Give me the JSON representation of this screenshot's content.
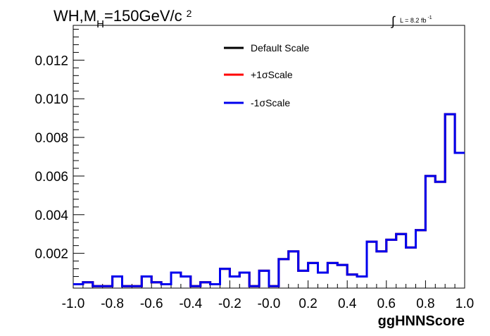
{
  "chart_data": {
    "type": "histogram",
    "title_parts": {
      "main": "WH,M",
      "sub": "H",
      "rest": "=150GeV/c",
      "sup": "2"
    },
    "lumi": {
      "integral": "∫",
      "text": "L = 8.2 fb",
      "sup": "-1"
    },
    "xlabel": "ggHNNScore",
    "ylabel": "",
    "xlim": [
      -1.0,
      1.0
    ],
    "ylim": [
      0.0002,
      0.0138
    ],
    "x_ticks": [
      "-1.0",
      "-0.8",
      "-0.6",
      "-0.4",
      "-0.2",
      "-0.0",
      "0.2",
      "0.4",
      "0.6",
      "0.8",
      "1.0"
    ],
    "y_ticks": [
      "0.002",
      "0.004",
      "0.006",
      "0.008",
      "0.010",
      "0.012"
    ],
    "bin_edges_start": -1.0,
    "bin_width": 0.05,
    "series": [
      {
        "name": "Default Scale",
        "color": "#000000",
        "values": [
          0.0004,
          0.0005,
          0.0003,
          0.0003,
          0.0008,
          0.0003,
          0.0003,
          0.0008,
          0.0005,
          0.0004,
          0.001,
          0.0008,
          0.0003,
          0.0005,
          0.0004,
          0.0012,
          0.0008,
          0.001,
          0.0003,
          0.0011,
          0.0003,
          0.0017,
          0.0021,
          0.0011,
          0.0015,
          0.001,
          0.0015,
          0.0014,
          0.0009,
          0.0008,
          0.0026,
          0.0021,
          0.0027,
          0.003,
          0.0023,
          0.0032,
          0.006,
          0.0057,
          0.0092,
          0.0072
        ]
      },
      {
        "name": "+1σScale",
        "color": "#ff0000",
        "values": [
          0.0004,
          0.0005,
          0.0003,
          0.0003,
          0.0008,
          0.0003,
          0.0003,
          0.0008,
          0.0005,
          0.0004,
          0.001,
          0.0008,
          0.0003,
          0.0005,
          0.0004,
          0.0012,
          0.0008,
          0.001,
          0.0003,
          0.0011,
          0.0003,
          0.0017,
          0.0021,
          0.0011,
          0.0015,
          0.001,
          0.0015,
          0.0014,
          0.0009,
          0.0008,
          0.0026,
          0.0021,
          0.0027,
          0.003,
          0.0023,
          0.0032,
          0.006,
          0.0057,
          0.0092,
          0.0072
        ]
      },
      {
        "name": "-1σScale",
        "color": "#0000ee",
        "values": [
          0.0004,
          0.0005,
          0.0003,
          0.0003,
          0.0008,
          0.0003,
          0.0003,
          0.0008,
          0.0005,
          0.0004,
          0.001,
          0.0008,
          0.0003,
          0.0005,
          0.0004,
          0.0012,
          0.0008,
          0.001,
          0.0003,
          0.0011,
          0.0003,
          0.0017,
          0.0021,
          0.0011,
          0.0015,
          0.001,
          0.0015,
          0.0014,
          0.0009,
          0.0008,
          0.0026,
          0.0021,
          0.0027,
          0.003,
          0.0023,
          0.0032,
          0.006,
          0.0057,
          0.0092,
          0.0072
        ]
      }
    ],
    "legend_position": "top-center",
    "grid": false
  }
}
